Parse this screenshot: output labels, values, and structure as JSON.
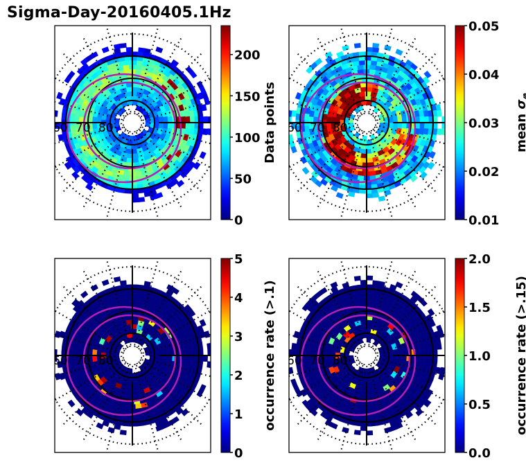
{
  "title": "Sigma-Day-20160405.1Hz",
  "chart_data": [
    {
      "type": "heatmap",
      "projection": "polar (magnetic latitude / MLT)",
      "title": "",
      "colormap": "jet",
      "colorbar": {
        "label": "Data points",
        "range": [
          0,
          235
        ],
        "ticks": [
          "0",
          "50",
          "100",
          "150",
          "200"
        ],
        "tick_values": [
          0,
          50,
          100,
          150,
          200
        ]
      },
      "lat_labels": [
        "60",
        "70",
        "80"
      ],
      "lat_circles_deg": [
        60,
        70,
        80
      ],
      "dominant_values": "mostly 20-120; peaks ~200 near dusk/dawn 65-70 lat"
    },
    {
      "type": "heatmap",
      "projection": "polar (magnetic latitude / MLT)",
      "title": "",
      "colormap": "jet",
      "colorbar": {
        "label": "mean σφ",
        "range": [
          0.01,
          0.05
        ],
        "ticks": [
          "0.01",
          "0.02",
          "0.03",
          "0.04",
          "0.05"
        ],
        "tick_values": [
          0.01,
          0.02,
          0.03,
          0.04,
          0.05
        ]
      },
      "lat_labels": [
        "60",
        "70",
        "80"
      ],
      "lat_circles_deg": [
        60,
        70,
        80
      ],
      "dominant_values": "0.015-0.03 at low lat; 0.04-0.05 in auroral oval (70-80 lat, dusk/night)"
    },
    {
      "type": "heatmap",
      "projection": "polar (magnetic latitude / MLT)",
      "title": "",
      "colormap": "jet",
      "colorbar": {
        "label": "occurrence rate (>.1)",
        "range": [
          0,
          5
        ],
        "ticks": [
          "0",
          "1",
          "2",
          "3",
          "4",
          "5"
        ],
        "tick_values": [
          0,
          1,
          2,
          3,
          4,
          5
        ]
      },
      "lat_labels": [
        "60",
        "70",
        "80"
      ],
      "lat_circles_deg": [
        60,
        70,
        80
      ],
      "dominant_values": "mostly 0; sparse 2-5 arcs in auroral oval"
    },
    {
      "type": "heatmap",
      "projection": "polar (magnetic latitude / MLT)",
      "title": "",
      "colormap": "jet",
      "colorbar": {
        "label": "occurrence rate (>.15)",
        "range": [
          0,
          2.0
        ],
        "ticks": [
          "0.0",
          "0.5",
          "1.0",
          "1.5",
          "2.0"
        ],
        "tick_values": [
          0,
          0.5,
          1.0,
          1.5,
          2.0
        ]
      },
      "lat_labels": [
        "60",
        "70",
        "80"
      ],
      "lat_circles_deg": [
        60,
        70,
        80
      ],
      "dominant_values": "mostly 0; sparse 1-2 arcs in auroral oval"
    }
  ]
}
